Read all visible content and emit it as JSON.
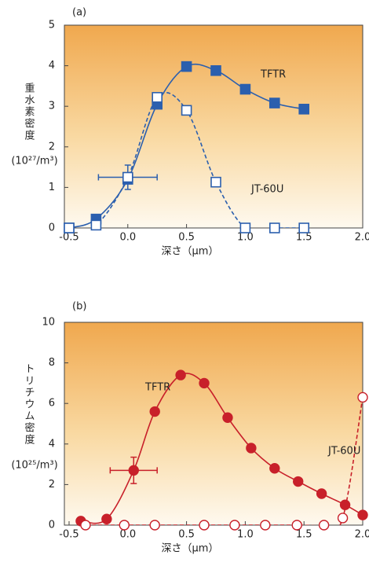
{
  "chart_data": [
    {
      "type": "line",
      "title": "(a)",
      "y_label": "重水素密度",
      "y_unit": "(10²⁷/m³)",
      "x_label": "深さ（μm）",
      "xlim": [
        -0.54,
        2.0
      ],
      "ylim": [
        0,
        5
      ],
      "xticks": [
        {
          "value": -0.5,
          "label": "-0.5"
        },
        {
          "value": 0,
          "label": "0.0"
        },
        {
          "value": 0.5,
          "label": "0.5"
        },
        {
          "value": 1,
          "label": "1.0"
        },
        {
          "value": 1.5,
          "label": "1.5"
        },
        {
          "value": 2,
          "label": "2.0"
        }
      ],
      "yticks": [
        0,
        1,
        2,
        3,
        4,
        5
      ],
      "series": [
        {
          "name": "TFTR",
          "color": "#2b5fae",
          "marker": "square",
          "filled": true,
          "dashed": false,
          "x": [
            -0.5,
            -0.27,
            0.0,
            0.25,
            0.5,
            0.75,
            1.0,
            1.25,
            1.5
          ],
          "values": [
            0,
            0.22,
            1.2,
            3.05,
            3.98,
            3.88,
            3.42,
            3.08,
            2.93
          ]
        },
        {
          "name": "JT-60U",
          "color": "#2b5fae",
          "marker": "square",
          "filled": false,
          "dashed": true,
          "x": [
            -0.5,
            -0.27,
            0.0,
            0.25,
            0.5,
            0.75,
            1.0,
            1.25,
            1.5
          ],
          "values": [
            0,
            0.07,
            1.25,
            3.22,
            2.9,
            1.13,
            0,
            0,
            0
          ],
          "xerr": [
            null,
            null,
            0.25,
            null,
            null,
            null,
            null,
            null,
            null
          ],
          "yerr": [
            null,
            null,
            0.3,
            null,
            null,
            null,
            null,
            null,
            null
          ]
        }
      ]
    },
    {
      "type": "line",
      "title": "(b)",
      "y_label": "トリチウム密度",
      "y_unit": "(10²⁵/m³)",
      "x_label": "深さ（μm）",
      "xlim": [
        -0.54,
        2.0
      ],
      "ylim": [
        0,
        10
      ],
      "xticks": [
        {
          "value": -0.5,
          "label": "-0.5"
        },
        {
          "value": 0,
          "label": "0.0"
        },
        {
          "value": 0.5,
          "label": "0.5"
        },
        {
          "value": 1,
          "label": "1.0"
        },
        {
          "value": 1.5,
          "label": "1.5"
        },
        {
          "value": 2,
          "label": "2.0"
        }
      ],
      "yticks": [
        0,
        2,
        4,
        6,
        8,
        10
      ],
      "series": [
        {
          "name": "TFTR",
          "color": "#c8202a",
          "marker": "circle",
          "filled": true,
          "dashed": false,
          "x": [
            -0.4,
            -0.18,
            0.05,
            0.23,
            0.45,
            0.65,
            0.85,
            1.05,
            1.25,
            1.45,
            1.65,
            1.85,
            2.0
          ],
          "values": [
            0.2,
            0.3,
            2.7,
            5.6,
            7.4,
            7.0,
            5.3,
            3.8,
            2.8,
            2.15,
            1.55,
            1.0,
            0.5
          ],
          "xerr": [
            null,
            null,
            0.2,
            null,
            null,
            null,
            null,
            null,
            null,
            null,
            null,
            null,
            null
          ],
          "yerr": [
            null,
            null,
            0.65,
            null,
            null,
            null,
            null,
            null,
            null,
            null,
            null,
            null,
            null
          ]
        },
        {
          "name": "JT-60U",
          "color": "#c8202a",
          "marker": "circle",
          "filled": false,
          "dashed": true,
          "x": [
            -0.36,
            -0.03,
            0.23,
            0.65,
            0.91,
            1.17,
            1.44,
            1.67,
            1.83,
            2.0
          ],
          "values": [
            0,
            0,
            0,
            0,
            0,
            0,
            0,
            0,
            0.35,
            6.3
          ]
        }
      ]
    }
  ]
}
